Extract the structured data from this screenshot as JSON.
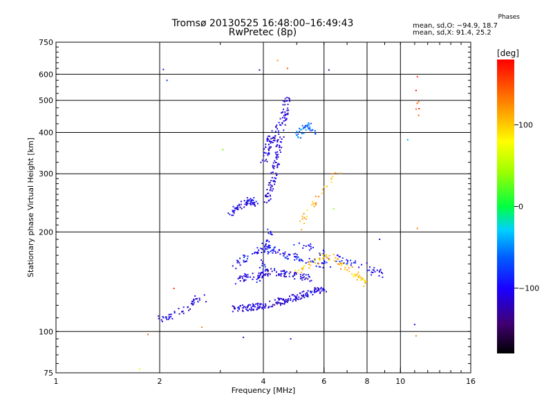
{
  "header": {
    "title_line1": "Tromsø 20130525 16:48:00–16:49:43",
    "title_line2": "RwPretec (8p)",
    "phase_title": "Phases",
    "phase_o": "mean, sd,O: −94.9, 18.7",
    "phase_x": "mean, sd,X:  91.4, 25.2"
  },
  "chart_data": {
    "type": "scatter",
    "xlabel": "Frequency [MHz]",
    "ylabel": "Stationary phase Virtual Height [km]",
    "x_scale": "log",
    "y_scale": "log",
    "xlim": [
      1,
      16
    ],
    "ylim": [
      75,
      750
    ],
    "x_ticks": [
      1,
      2,
      4,
      6,
      8,
      10,
      16
    ],
    "y_ticks": [
      75,
      100,
      200,
      300,
      400,
      500,
      600,
      750
    ],
    "grid": true,
    "colorbar": {
      "label": "[deg]",
      "range": [
        -180,
        180
      ],
      "tick_labels": [
        "100",
        "0",
        "−100"
      ],
      "tick_values": [
        100,
        0,
        -100
      ]
    },
    "clusters": [
      {
        "x": [
          1.95,
          2.05,
          2.15,
          2.3,
          2.45,
          2.55,
          2.65,
          2.75
        ],
        "y": [
          108,
          110,
          112,
          115,
          119,
          125,
          127,
          124
        ],
        "phase": -110,
        "n": 50
      },
      {
        "x": [
          3.3,
          3.6,
          3.9,
          4.2,
          4.6,
          5.0,
          5.5,
          6.0
        ],
        "y": [
          117,
          118,
          119,
          121,
          124,
          127,
          131,
          135
        ],
        "phase": -110,
        "n": 180
      },
      {
        "x": [
          3.3,
          3.6,
          3.9,
          4.2,
          4.6,
          5.0,
          5.5
        ],
        "y": [
          142,
          146,
          148,
          152,
          150,
          147,
          145
        ],
        "phase": -110,
        "n": 110
      },
      {
        "x": [
          3.2,
          3.5,
          3.8,
          4.2,
          4.6,
          5.0,
          5.6,
          6.2
        ],
        "y": [
          155,
          165,
          175,
          178,
          170,
          168,
          163,
          158
        ],
        "phase": -95,
        "n": 110
      },
      {
        "x": [
          3.9,
          4.05,
          4.2
        ],
        "y": [
          140,
          180,
          200
        ],
        "phase": -100,
        "n": 40
      },
      {
        "x": [
          5.0,
          5.6,
          6.3,
          7.0,
          7.8,
          8.6,
          9.2
        ],
        "y": [
          185,
          178,
          168,
          162,
          158,
          150,
          148
        ],
        "phase": -100,
        "n": 60
      },
      {
        "x": [
          3.2,
          3.4,
          3.6,
          3.8
        ],
        "y": [
          228,
          240,
          250,
          245
        ],
        "phase": -105,
        "n": 70
      },
      {
        "x": [
          4.1,
          4.25,
          4.4,
          4.55,
          4.7
        ],
        "y": [
          250,
          290,
          340,
          420,
          520
        ],
        "phase": -110,
        "n": 120
      },
      {
        "x": [
          4.0,
          4.1,
          4.2,
          4.35,
          4.5
        ],
        "y": [
          320,
          360,
          380,
          400,
          440
        ],
        "phase": -110,
        "n": 60
      },
      {
        "x": [
          5.0,
          5.2,
          5.4,
          5.6
        ],
        "y": [
          390,
          410,
          420,
          395
        ],
        "phase": -60,
        "n": 40
      },
      {
        "x": [
          5.0,
          5.5,
          6.0,
          6.5,
          7.0,
          7.5,
          8.0
        ],
        "y": [
          150,
          160,
          170,
          165,
          155,
          148,
          140
        ],
        "phase": 100,
        "n": 80
      },
      {
        "x": [
          5.0,
          5.4,
          5.8,
          6.2,
          6.6
        ],
        "y": [
          200,
          230,
          260,
          280,
          300
        ],
        "phase": 110,
        "n": 30
      },
      {
        "x": [
          11.1,
          11.2,
          11.3
        ],
        "y": [
          430,
          500,
          560
        ],
        "phase": 150,
        "n": 6
      }
    ],
    "sparse_points": [
      {
        "x": 2.05,
        "y": 620,
        "phase": -110
      },
      {
        "x": 2.1,
        "y": 575,
        "phase": -80
      },
      {
        "x": 3.9,
        "y": 618,
        "phase": -120
      },
      {
        "x": 4.4,
        "y": 660,
        "phase": 120
      },
      {
        "x": 4.7,
        "y": 625,
        "phase": 140
      },
      {
        "x": 6.2,
        "y": 618,
        "phase": -120
      },
      {
        "x": 6.4,
        "y": 235,
        "phase": 40
      },
      {
        "x": 3.05,
        "y": 355,
        "phase": 30
      },
      {
        "x": 2.2,
        "y": 135,
        "phase": 160
      },
      {
        "x": 2.65,
        "y": 103,
        "phase": 130
      },
      {
        "x": 1.85,
        "y": 98,
        "phase": 140
      },
      {
        "x": 1.75,
        "y": 77,
        "phase": 70
      },
      {
        "x": 3.5,
        "y": 96,
        "phase": -110
      },
      {
        "x": 4.8,
        "y": 95,
        "phase": -110
      },
      {
        "x": 8.7,
        "y": 190,
        "phase": -115
      },
      {
        "x": 10.5,
        "y": 380,
        "phase": -40
      },
      {
        "x": 11.0,
        "y": 105,
        "phase": -110
      },
      {
        "x": 11.1,
        "y": 97,
        "phase": 130
      },
      {
        "x": 11.2,
        "y": 205,
        "phase": 130
      },
      {
        "x": 11.2,
        "y": 590,
        "phase": 160
      }
    ]
  }
}
